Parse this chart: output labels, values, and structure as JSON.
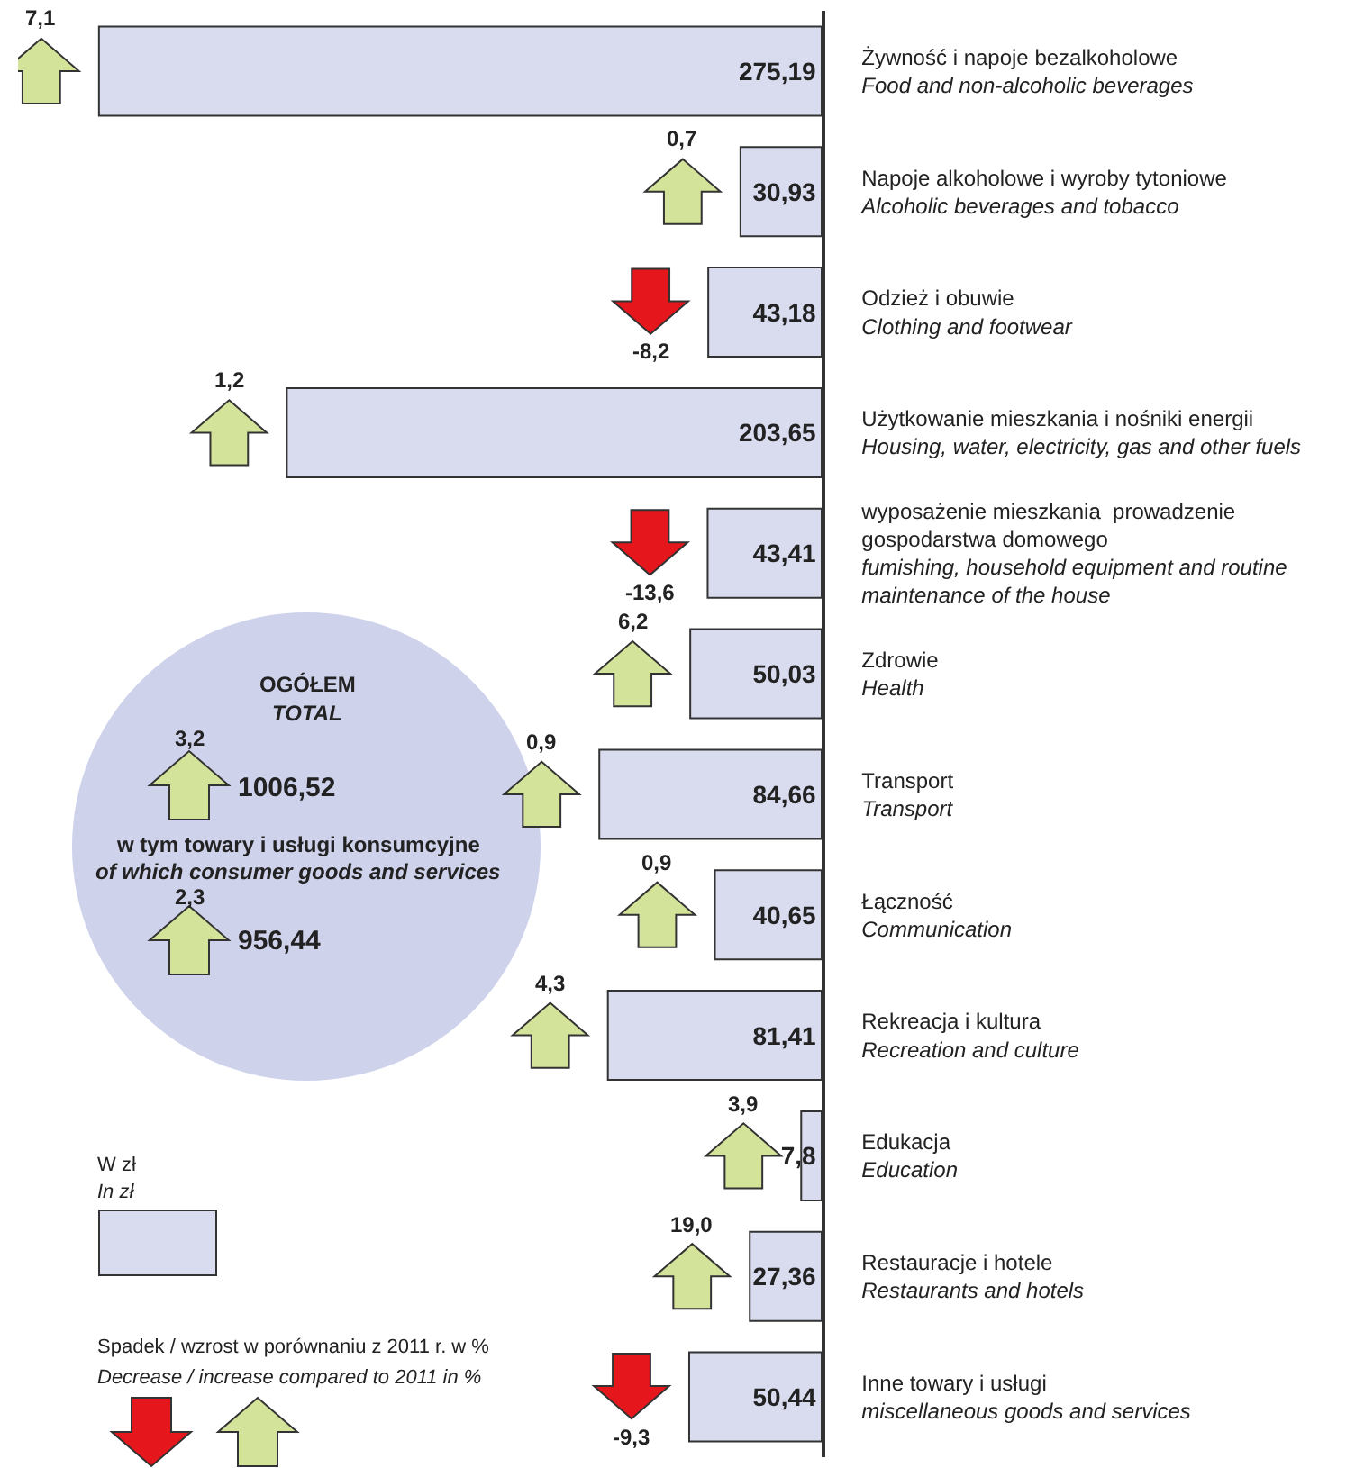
{
  "chart_data": {
    "type": "bar",
    "orientation": "horizontal",
    "color": "#d9dcef",
    "categories": [
      "Żywność i napoje bezalkoholowe\nFood and non-alcoholic beverages",
      "Napoje alkoholowe i wyroby tytoniowe\nAlcoholic beverages and tobacco",
      "Odzież i obuwie\nClothing and footwear",
      "Użytkowanie mieszkania i nośniki energii\nHousing, water, electricity, gas and other fuels",
      "wyposażenie mieszkania  prowadzenie\ngospodarstwa domowego\nfumishing, household equipment and routine\nmaintenance of the house",
      "Zdrowie\nHealth",
      "Transport\nTransport",
      "Łączność\nCommunication",
      "Rekreacja i kultura\nRecreation and culture",
      "Edukacja\nEducation",
      "Restauracje i hotele\nRestaurants and hotels",
      "Inne towary i usługi\nmiscellaneous goods and services"
    ],
    "values": [
      275.19,
      30.93,
      43.18,
      203.65,
      43.41,
      50.03,
      84.66,
      40.65,
      81.41,
      7.8,
      27.36,
      50.44
    ],
    "value_labels": [
      "275,19",
      "30,93",
      "43,18",
      "203,65",
      "43,41",
      "50,03",
      "84,66",
      "40,65",
      "81,41",
      "7,8",
      "27,36",
      "50,44"
    ],
    "legend": false,
    "annotations": [
      "7,1",
      "0,7",
      "-8,2",
      "1,2",
      "-13,6",
      "6,2",
      "0,9",
      "0,9",
      "4,3",
      "3,9",
      "19,0",
      "-9,3",
      "OGÓŁEM",
      "TOTAL",
      "3,2",
      "1006,52",
      "w tym towary i usługi konsumcyjne",
      "of which consumer goods and services",
      "2,3",
      "956,44",
      "W zł",
      "In zł",
      "Spadek / wzrost w porównaniu z 2011 r. w %",
      "Decrease / increase compared to 2011 in %"
    ]
  }
}
